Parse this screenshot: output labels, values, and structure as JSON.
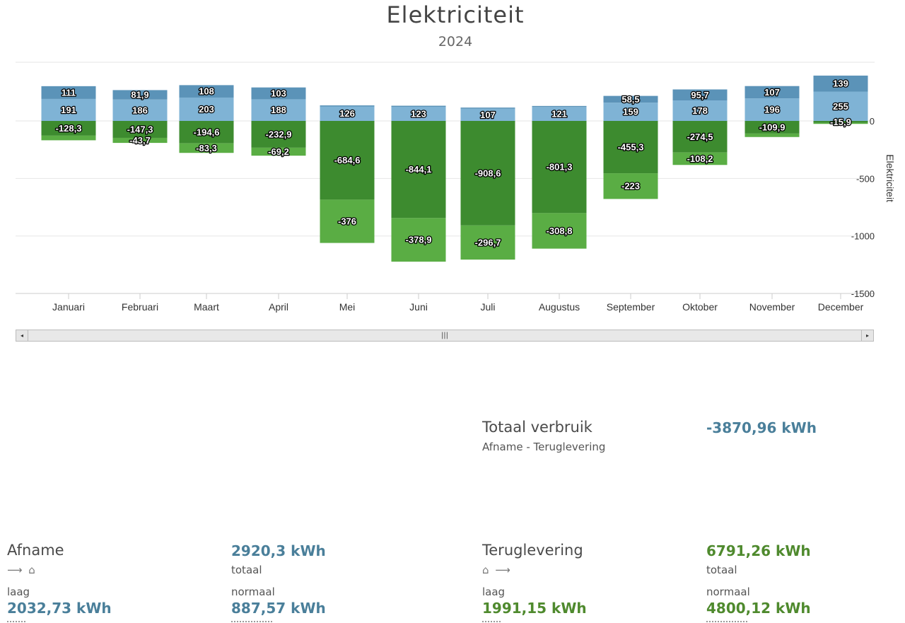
{
  "chart_data": {
    "type": "bar",
    "stacked": true,
    "title": "Elektriciteit",
    "subtitle": "2024",
    "ylabel": "Elektriciteit",
    "ylim": [
      -1500,
      300
    ],
    "yticks": [
      "0",
      "-500",
      "-1000",
      "-1500"
    ],
    "categories": [
      "Januari",
      "Februari",
      "Maart",
      "April",
      "Mei",
      "Juni",
      "Juli",
      "Augustus",
      "September",
      "Oktober",
      "November",
      "December"
    ],
    "series": [
      {
        "key": "afname_normaal",
        "color": "#7fb3d5",
        "labels": [
          "191",
          "186",
          "203",
          "188",
          "126",
          "123",
          "107",
          "121",
          "159",
          "178",
          "196",
          "255"
        ],
        "values": [
          191,
          186,
          203,
          188,
          126,
          123,
          107,
          121,
          159,
          178,
          196,
          255
        ]
      },
      {
        "key": "afname_laag",
        "color": "#5b93b8",
        "labels": [
          "111",
          "81,9",
          "108",
          "103",
          "",
          "",
          "",
          "",
          "58,5",
          "95,7",
          "107",
          "139"
        ],
        "values": [
          111,
          81.9,
          108,
          103,
          9,
          9,
          9,
          9,
          58.5,
          95.7,
          107,
          139
        ]
      },
      {
        "key": "teruglevering_normaal",
        "color": "#3d8b2f",
        "labels": [
          "-128,3",
          "-147,3",
          "-194,6",
          "-232,9",
          "-684,6",
          "-844,1",
          "-908,6",
          "-801,3",
          "-455,3",
          "-274,5",
          "-109,9",
          "-15,9"
        ],
        "values": [
          -128.3,
          -147.3,
          -194.6,
          -232.9,
          -684.6,
          -844.1,
          -908.6,
          -801.3,
          -455.3,
          -274.5,
          -109.9,
          -15.9
        ]
      },
      {
        "key": "teruglevering_laag",
        "color": "#5aad44",
        "labels": [
          "",
          "-43,7",
          "-83,3",
          "-69,2",
          "-376",
          "-378,9",
          "-296,7",
          "-308,8",
          "-223",
          "-108,2",
          "",
          ""
        ],
        "values": [
          -40,
          -43.7,
          -83.3,
          -69.2,
          -376,
          -378.9,
          -296.7,
          -308.8,
          -223,
          -108.2,
          -30,
          -10
        ]
      }
    ]
  },
  "scrollbar": {
    "left": "◂",
    "right": "▸",
    "thumb": "|||"
  },
  "summary": {
    "totaal": {
      "label": "Totaal verbruik",
      "sub": "Afname - Teruglevering",
      "value": "-3870,96 kWh"
    },
    "afname": {
      "label": "Afname",
      "icons": "⟶ ⌂",
      "total_value": "2920,3 kWh",
      "total_label": "totaal",
      "laag_label": "laag",
      "laag_value": "2032,73 kWh",
      "normaal_label": "normaal",
      "normaal_value": "887,57 kWh"
    },
    "teruglevering": {
      "label": "Teruglevering",
      "icons": "⌂ ⟶",
      "total_value": "6791,26 kWh",
      "total_label": "totaal",
      "laag_label": "laag",
      "laag_value": "1991,15 kWh",
      "normaal_label": "normaal",
      "normaal_value": "4800,12 kWh"
    }
  }
}
